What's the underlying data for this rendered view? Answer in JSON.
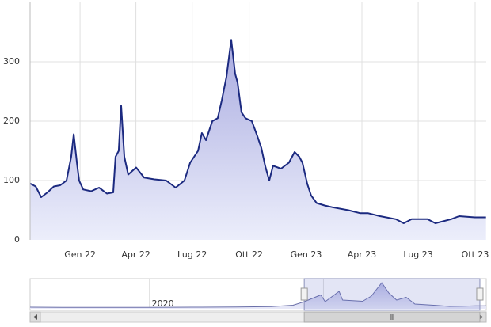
{
  "chart_data": [
    {
      "type": "area",
      "color": "#1c2a80",
      "grid": true,
      "x": [
        2021.779,
        2021.804,
        2021.828,
        2021.856,
        2021.884,
        2021.912,
        2021.94,
        2021.961,
        2021.972,
        2021.986,
        2021.996,
        2022.014,
        2022.049,
        2022.084,
        2022.119,
        2022.147,
        2022.157,
        2022.171,
        2022.182,
        2022.196,
        2022.213,
        2022.248,
        2022.283,
        2022.329,
        2022.381,
        2022.423,
        2022.462,
        2022.487,
        2022.522,
        2022.539,
        2022.557,
        2022.585,
        2022.609,
        2022.627,
        2022.648,
        2022.669,
        2022.686,
        2022.697,
        2022.714,
        2022.732,
        2022.76,
        2022.784,
        2022.802,
        2022.819,
        2022.837,
        2022.854,
        2022.889,
        2022.924,
        2022.949,
        2022.97,
        2022.984,
        2023.005,
        2023.022,
        2023.047,
        2023.082,
        2023.117,
        2023.187,
        2023.24,
        2023.275,
        2023.327,
        2023.397,
        2023.432,
        2023.467,
        2023.537,
        2023.572,
        2023.642,
        2023.677,
        2023.747,
        2023.796
      ],
      "values": [
        95,
        90,
        72,
        80,
        90,
        92,
        100,
        140,
        178,
        130,
        100,
        85,
        82,
        88,
        78,
        80,
        140,
        150,
        226,
        140,
        110,
        122,
        105,
        102,
        100,
        88,
        100,
        130,
        150,
        180,
        168,
        200,
        205,
        235,
        275,
        337,
        280,
        265,
        215,
        205,
        200,
        175,
        155,
        125,
        100,
        125,
        120,
        130,
        148,
        140,
        130,
        95,
        75,
        62,
        58,
        55,
        50,
        45,
        45,
        40,
        35,
        28,
        35,
        35,
        28,
        35,
        40,
        38,
        38
      ],
      "xlim": [
        2021.779,
        2023.797
      ],
      "ylim": [
        0,
        400
      ],
      "xticks": [
        {
          "value": 2022,
          "label": "Gen 22"
        },
        {
          "value": 2022.247,
          "label": "Apr 22"
        },
        {
          "value": 2022.496,
          "label": "Lug 22"
        },
        {
          "value": 2022.748,
          "label": "Ott 22"
        },
        {
          "value": 2023,
          "label": "Gen 23"
        },
        {
          "value": 2023.247,
          "label": "Apr 23"
        },
        {
          "value": 2023.496,
          "label": "Lug 23"
        },
        {
          "value": 2023.748,
          "label": "Ott 23"
        }
      ],
      "yticks": [
        0,
        100,
        200,
        300
      ]
    },
    {
      "type": "area",
      "color": "#6a6fa8",
      "x": [
        2018.63,
        2019,
        2019.5,
        2020,
        2020.5,
        2021,
        2021.4,
        2021.65,
        2021.78,
        2021.97,
        2022.02,
        2022.18,
        2022.22,
        2022.45,
        2022.55,
        2022.67,
        2022.75,
        2022.84,
        2022.95,
        2023.05,
        2023.3,
        2023.45,
        2023.6,
        2023.75,
        2023.87
      ],
      "values": [
        20,
        18,
        17,
        18,
        20,
        22,
        28,
        45,
        90,
        175,
        90,
        220,
        110,
        95,
        160,
        330,
        200,
        110,
        145,
        60,
        42,
        30,
        32,
        38,
        38
      ],
      "xlim": [
        2018.63,
        2023.87
      ],
      "ylim": [
        0,
        400
      ],
      "xticks": [
        2020,
        2022
      ]
    }
  ]
}
